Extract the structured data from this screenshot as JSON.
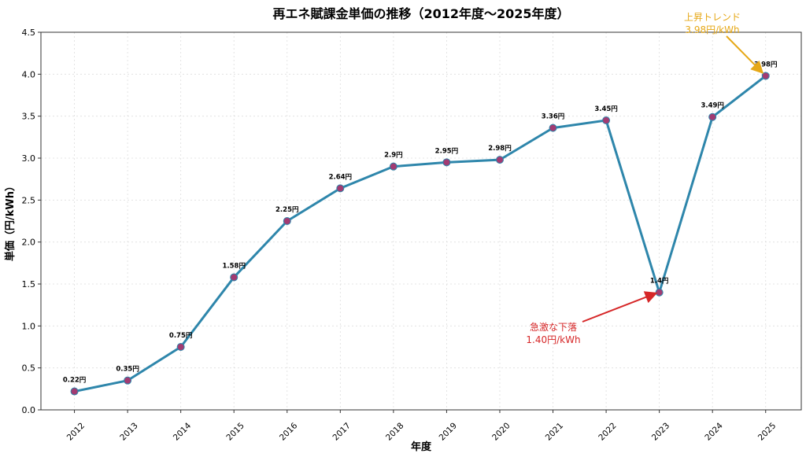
{
  "chart_data": {
    "type": "line",
    "title": "再エネ賦課金単価の推移（2012年度〜2025年度）",
    "xlabel": "年度",
    "ylabel": "単価（円/kWh）",
    "x": [
      2012,
      2013,
      2014,
      2015,
      2016,
      2017,
      2018,
      2019,
      2020,
      2021,
      2022,
      2023,
      2024,
      2025
    ],
    "values": [
      0.22,
      0.35,
      0.75,
      1.58,
      2.25,
      2.64,
      2.9,
      2.95,
      2.98,
      3.36,
      3.45,
      1.4,
      3.49,
      3.98
    ],
    "data_labels": [
      "0.22円",
      "0.35円",
      "0.75円",
      "1.58円",
      "2.25円",
      "2.64円",
      "2.9円",
      "2.95円",
      "2.98円",
      "3.36円",
      "3.45円",
      "1.4円",
      "3.49円",
      "3.98円"
    ],
    "ylim": [
      0,
      4.5
    ],
    "yticks": [
      "0.0",
      "0.5",
      "1.0",
      "1.5",
      "2.0",
      "2.5",
      "3.0",
      "3.5",
      "4.0",
      "4.5"
    ],
    "xticks": [
      "2012",
      "2013",
      "2014",
      "2015",
      "2016",
      "2017",
      "2018",
      "2019",
      "2020",
      "2021",
      "2022",
      "2023",
      "2024",
      "2025"
    ],
    "grid": true,
    "line_color": "#2e86ab",
    "marker_color": "#a23b72",
    "annotations": [
      {
        "lines": [
          "急激な下落",
          "1.40円/kWh"
        ],
        "target_x": 2023,
        "target_y": 1.4,
        "color": "#d62728"
      },
      {
        "lines": [
          "上昇トレンド",
          "3.98円/kWh"
        ],
        "target_x": 2025,
        "target_y": 3.98,
        "color": "#e6a817"
      }
    ]
  }
}
